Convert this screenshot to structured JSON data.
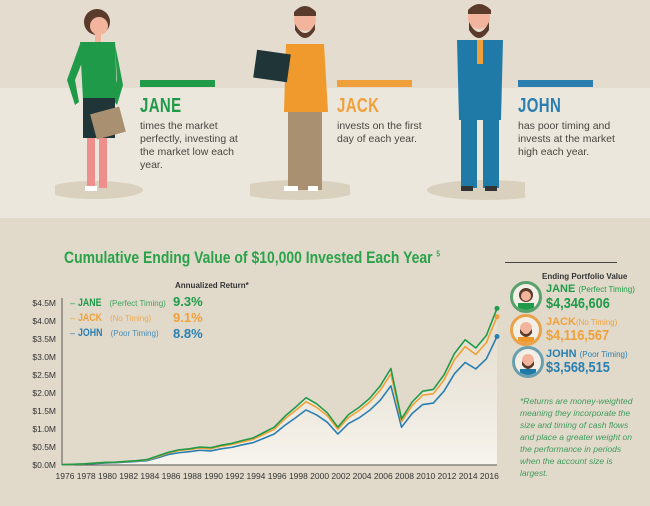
{
  "people": [
    {
      "name": "JANE",
      "desc": "times the market perfectly, investing at the market low each year.",
      "color": "#1f9a48"
    },
    {
      "name": "JACK",
      "desc": "invests on the first day of each year.",
      "color": "#f0a03a"
    },
    {
      "name": "JOHN",
      "desc": "has poor timing and invests at the market high each year.",
      "color": "#2a7fb0"
    }
  ],
  "chart_data": {
    "type": "line",
    "title": "Cumulative Ending Value of $10,000 Invested Each Year",
    "title_footnote": "5",
    "annualized_header": "Annualized Return*",
    "xlabel": "",
    "ylabel": "",
    "ylim": [
      0,
      4.5
    ],
    "yticks": [
      "$0.0M",
      "$0.5M",
      "$1.0M",
      "$1.5M",
      "$2.0M",
      "$2.5M",
      "$3.0M",
      "$3.5M",
      "$4.0M",
      "$4.5M"
    ],
    "xlim": [
      1976,
      2017
    ],
    "xticks": [
      "1976",
      "1978",
      "1980",
      "1982",
      "1984",
      "1986",
      "1988",
      "1990",
      "1992",
      "1994",
      "1996",
      "1998",
      "2000",
      "2002",
      "2004",
      "2006",
      "2008",
      "2010",
      "2012",
      "2014",
      "2016"
    ],
    "x": [
      1976,
      1977,
      1978,
      1979,
      1980,
      1981,
      1982,
      1983,
      1984,
      1985,
      1986,
      1987,
      1988,
      1989,
      1990,
      1991,
      1992,
      1993,
      1994,
      1995,
      1996,
      1997,
      1998,
      1999,
      2000,
      2001,
      2002,
      2003,
      2004,
      2005,
      2006,
      2007,
      2008,
      2009,
      2010,
      2011,
      2012,
      2013,
      2014,
      2015,
      2016,
      2017
    ],
    "series": [
      {
        "name": "JANE",
        "label": "(Perfect Timing)",
        "return": "9.3%",
        "ending": "$4,346,606",
        "color": "#1f9a48",
        "values": [
          0.01,
          0.02,
          0.03,
          0.05,
          0.07,
          0.08,
          0.1,
          0.12,
          0.15,
          0.25,
          0.35,
          0.42,
          0.45,
          0.5,
          0.48,
          0.55,
          0.6,
          0.68,
          0.75,
          0.9,
          1.05,
          1.35,
          1.6,
          1.87,
          1.7,
          1.45,
          1.05,
          1.4,
          1.6,
          1.85,
          2.2,
          2.68,
          1.28,
          1.75,
          2.05,
          2.1,
          2.5,
          3.1,
          3.48,
          3.25,
          3.6,
          4.35
        ]
      },
      {
        "name": "JACK",
        "label": "(No Timing)",
        "return": "9.1%",
        "ending": "$4,116,567",
        "color": "#f0a03a",
        "values": [
          0.01,
          0.02,
          0.03,
          0.05,
          0.066,
          0.076,
          0.095,
          0.113,
          0.14,
          0.23,
          0.33,
          0.4,
          0.43,
          0.47,
          0.45,
          0.52,
          0.57,
          0.64,
          0.71,
          0.85,
          0.99,
          1.28,
          1.51,
          1.76,
          1.6,
          1.37,
          0.99,
          1.32,
          1.51,
          1.75,
          2.08,
          2.53,
          1.2,
          1.65,
          1.94,
          1.98,
          2.36,
          2.93,
          3.29,
          3.07,
          3.4,
          4.12
        ]
      },
      {
        "name": "JOHN",
        "label": "(Poor Timing)",
        "return": "8.8%",
        "ending": "$3,568,515",
        "color": "#2a7fb0",
        "values": [
          0.01,
          0.016,
          0.025,
          0.04,
          0.055,
          0.065,
          0.08,
          0.1,
          0.12,
          0.2,
          0.29,
          0.34,
          0.37,
          0.41,
          0.39,
          0.45,
          0.49,
          0.56,
          0.62,
          0.74,
          0.86,
          1.1,
          1.31,
          1.53,
          1.39,
          1.19,
          0.86,
          1.15,
          1.31,
          1.52,
          1.8,
          2.2,
          1.05,
          1.43,
          1.68,
          1.72,
          2.05,
          2.54,
          2.85,
          2.67,
          2.95,
          3.57
        ]
      }
    ],
    "legend": "top-left"
  },
  "ending_panel": {
    "header": "Ending Portfolio Value"
  },
  "footnote": "*Returns are money-weighted meaning they incorporate the size and timing of cash flows and place a greater weight on the performance in periods when the account size is largest."
}
